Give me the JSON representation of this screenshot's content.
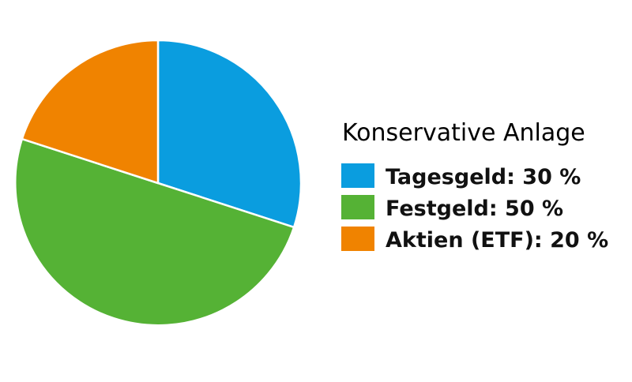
{
  "chart_data": {
    "type": "pie",
    "title": "Konservative Anlage",
    "legend_position": "right",
    "slices": [
      {
        "label": "Tagesgeld: 30 %",
        "category": "Tagesgeld",
        "value": 30,
        "color": "#0a9ddf"
      },
      {
        "label": "Festgeld: 50 %",
        "category": "Festgeld",
        "value": 50,
        "color": "#55b235"
      },
      {
        "label": "Aktien (ETF): 20 %",
        "category": "Aktien (ETF)",
        "value": 20,
        "color": "#f08300"
      }
    ]
  }
}
